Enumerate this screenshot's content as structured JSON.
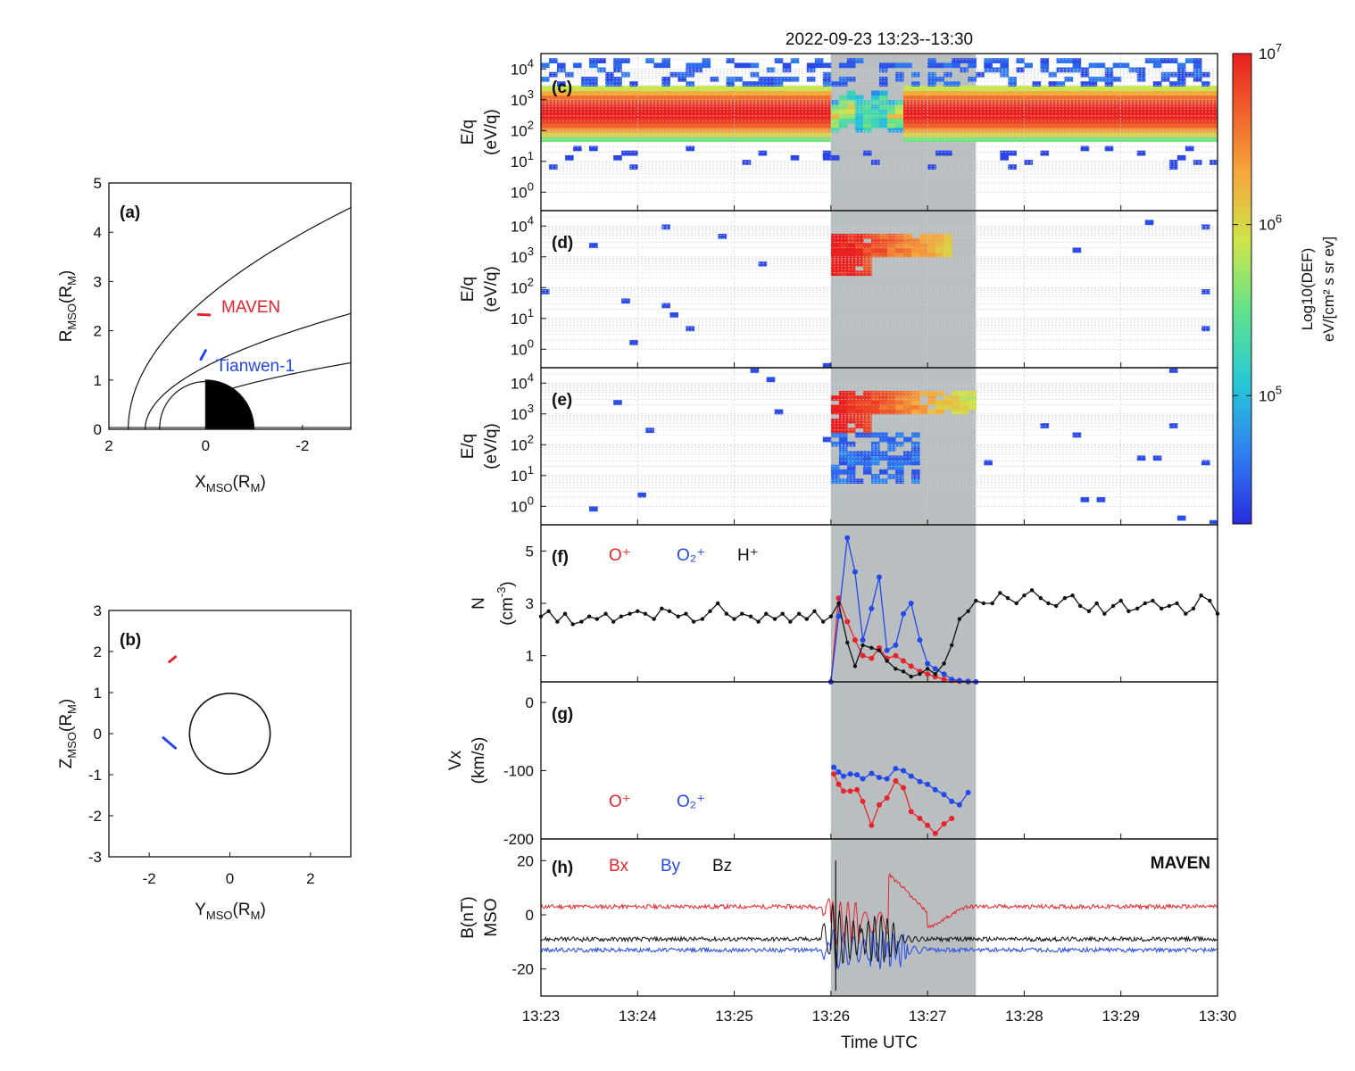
{
  "colors": {
    "red": "#e8232b",
    "blue": "#2347e8",
    "black": "#111111",
    "shade": "#b9bfc1",
    "planet": "#000000"
  },
  "colorbar": {
    "label": "Log10(DEF)",
    "unit": "eV/[cm² s sr ev]",
    "ticks": [
      {
        "base": "10",
        "exp": "7"
      },
      {
        "base": "10",
        "exp": "6"
      },
      {
        "base": "10",
        "exp": "5"
      }
    ]
  },
  "chart_data": [
    {
      "type": "line",
      "panel": "(a)",
      "xlabel": {
        "base": "X",
        "sub": "MSO",
        "rest": "(R",
        "rest_sub": "M",
        "close": ")"
      },
      "ylabel": {
        "base": "R",
        "sub": "MSO",
        "rest": "(R",
        "rest_sub": "M",
        "close": ")"
      },
      "xlim": [
        2,
        -3
      ],
      "ylim": [
        0,
        5
      ],
      "xticks": [
        "2",
        "0",
        "-2"
      ],
      "yticks": [
        "0",
        "1",
        "2",
        "3",
        "4",
        "5"
      ],
      "boundaries": [
        {
          "kind": "bow shock",
          "x0": 1.6,
          "x_end": -3,
          "y_end": 4.5
        },
        {
          "kind": "induced magnetosphere boundary",
          "x0": 1.25,
          "x_end": -3,
          "y_end": 2.35
        }
      ],
      "tracks": [
        {
          "name": "MAVEN",
          "color": "#e8232b",
          "points": [
            [
              0.15,
              2.33
            ],
            [
              -0.08,
              2.32
            ]
          ]
        },
        {
          "name": "Tianwen-1",
          "color": "#2347e8",
          "points": [
            [
              0.1,
              1.42
            ],
            [
              0.0,
              1.6
            ]
          ]
        }
      ]
    },
    {
      "type": "line",
      "panel": "(b)",
      "xlabel": {
        "base": "Y",
        "sub": "MSO",
        "rest": "(R",
        "rest_sub": "M",
        "close": ")"
      },
      "ylabel": {
        "base": "Z",
        "sub": "MSO",
        "rest": "(R",
        "rest_sub": "M",
        "close": ")"
      },
      "xlim": [
        -3,
        3
      ],
      "ylim": [
        -3,
        3
      ],
      "xticks": [
        "-2",
        "0",
        "2"
      ],
      "yticks": [
        "-3",
        "-2",
        "-1",
        "0",
        "1",
        "2",
        "3"
      ],
      "tracks": [
        {
          "color": "#e8232b",
          "points": [
            [
              -1.5,
              1.75
            ],
            [
              -1.35,
              1.87
            ]
          ]
        },
        {
          "color": "#2347e8",
          "points": [
            [
              -1.65,
              -0.1
            ],
            [
              -1.35,
              -0.35
            ]
          ]
        }
      ]
    },
    {
      "type": "heatmap",
      "panel": "(c)",
      "title": "2022-09-23 13:23--13:30",
      "ylabel": [
        "E/q",
        "(eV/q)"
      ],
      "yticks": [
        {
          "base": "10",
          "exp": "0"
        },
        {
          "base": "10",
          "exp": "1"
        },
        {
          "base": "10",
          "exp": "2"
        },
        {
          "base": "10",
          "exp": "3"
        },
        {
          "base": "10",
          "exp": "4"
        }
      ],
      "ylim_log10": [
        -0.6,
        4.5
      ],
      "band_log10": [
        1.6,
        3.6
      ],
      "peak_log10": 2.6
    },
    {
      "type": "heatmap",
      "panel": "(d)",
      "ylabel": [
        "E/q",
        "(eV/q)"
      ],
      "ylim_log10": [
        -0.6,
        4.5
      ],
      "feature": "high-energy ions 13:26-13:27 near 10^3-10^4 eV/q"
    },
    {
      "type": "heatmap",
      "panel": "(e)",
      "ylabel": [
        "E/q",
        "(eV/q)"
      ],
      "ylim_log10": [
        -0.6,
        4.5
      ],
      "feature": "high-energy ions 13:26-13:27.5 near 10^3-10^4 eV/q"
    },
    {
      "type": "line",
      "panel": "(f)",
      "ylabel": [
        "N",
        "(cm",
        "-3",
        ")"
      ],
      "ylim": [
        0,
        6
      ],
      "yticks": [
        "1",
        "3",
        "5"
      ],
      "series": [
        {
          "name": "O⁺",
          "color": "#e8232b",
          "x": [
            26.0,
            26.08,
            26.17,
            26.25,
            26.33,
            26.42,
            26.5,
            26.58,
            26.67,
            26.75,
            26.83,
            26.92,
            27.0,
            27.08,
            27.17,
            27.25,
            27.33,
            27.42,
            27.5
          ],
          "y": [
            0.0,
            3.2,
            2.3,
            1.6,
            1.0,
            0.9,
            1.3,
            0.9,
            1.0,
            0.8,
            0.6,
            0.4,
            0.3,
            0.2,
            0.1,
            0.05,
            0.02,
            0.0,
            0.0
          ]
        },
        {
          "name": "O₂⁺",
          "color": "#2347e8",
          "x": [
            26.0,
            26.08,
            26.17,
            26.25,
            26.33,
            26.42,
            26.5,
            26.58,
            26.67,
            26.75,
            26.83,
            26.92,
            27.0,
            27.08,
            27.17,
            27.25,
            27.33,
            27.42,
            27.5
          ],
          "y": [
            0.0,
            2.5,
            5.5,
            4.2,
            1.6,
            2.8,
            4.0,
            1.2,
            1.4,
            2.6,
            3.0,
            1.6,
            0.7,
            0.5,
            0.3,
            0.1,
            0.05,
            0.02,
            0.0
          ]
        },
        {
          "name": "H⁺",
          "color": "#111111",
          "x": [
            23.0,
            23.08,
            23.17,
            23.25,
            23.33,
            23.42,
            23.5,
            23.58,
            23.67,
            23.75,
            23.83,
            23.92,
            24.0,
            24.08,
            24.17,
            24.25,
            24.33,
            24.42,
            24.5,
            24.58,
            24.67,
            24.75,
            24.83,
            24.92,
            25.0,
            25.08,
            25.17,
            25.25,
            25.33,
            25.42,
            25.5,
            25.58,
            25.67,
            25.75,
            25.83,
            25.92,
            26.0,
            26.08,
            26.17,
            26.25,
            26.33,
            26.42,
            26.5,
            26.58,
            26.67,
            26.75,
            26.83,
            26.92,
            27.0,
            27.08,
            27.17,
            27.25,
            27.33,
            27.42,
            27.5,
            27.58,
            27.67,
            27.75,
            27.83,
            27.92,
            28.0,
            28.08,
            28.17,
            28.25,
            28.33,
            28.42,
            28.5,
            28.58,
            28.67,
            28.75,
            28.83,
            28.92,
            29.0,
            29.08,
            29.17,
            29.25,
            29.33,
            29.42,
            29.5,
            29.58,
            29.67,
            29.75,
            29.83,
            29.92,
            30.0
          ],
          "y": [
            2.5,
            2.7,
            2.3,
            2.6,
            2.2,
            2.3,
            2.5,
            2.4,
            2.6,
            2.3,
            2.5,
            2.6,
            2.7,
            2.6,
            2.4,
            2.8,
            2.7,
            2.5,
            2.6,
            2.3,
            2.4,
            2.7,
            3.0,
            2.6,
            2.4,
            2.6,
            2.5,
            2.3,
            2.6,
            2.4,
            2.6,
            2.3,
            2.6,
            2.4,
            2.7,
            2.3,
            2.5,
            3.0,
            1.5,
            0.6,
            1.4,
            1.3,
            1.2,
            0.8,
            0.5,
            0.4,
            0.2,
            0.3,
            0.5,
            0.3,
            0.7,
            1.4,
            2.4,
            2.7,
            3.1,
            3.0,
            3.0,
            3.4,
            3.2,
            3.0,
            3.3,
            3.5,
            3.2,
            3.0,
            2.9,
            3.2,
            3.3,
            2.9,
            2.7,
            3.0,
            2.6,
            2.9,
            3.1,
            2.7,
            2.8,
            3.0,
            3.1,
            2.8,
            2.9,
            3.0,
            2.6,
            2.8,
            3.3,
            3.1,
            2.6
          ]
        }
      ]
    },
    {
      "type": "line",
      "panel": "(g)",
      "ylabel": [
        "Vx",
        "(km/s)"
      ],
      "ylim": [
        -200,
        30
      ],
      "yticks": [
        "0",
        "-100",
        "-200"
      ],
      "series": [
        {
          "name": "O⁺",
          "color": "#e8232b",
          "x": [
            26.03,
            26.08,
            26.13,
            26.2,
            26.27,
            26.33,
            26.42,
            26.5,
            26.58,
            26.67,
            26.75,
            26.83,
            26.92,
            27.0,
            27.08,
            27.17,
            27.25
          ],
          "y": [
            -105,
            -120,
            -130,
            -130,
            -128,
            -145,
            -180,
            -150,
            -140,
            -115,
            -125,
            -160,
            -170,
            -180,
            -192,
            -178,
            -170
          ]
        },
        {
          "name": "O₂⁺",
          "color": "#2347e8",
          "x": [
            26.03,
            26.08,
            26.13,
            26.2,
            26.27,
            26.33,
            26.42,
            26.5,
            26.58,
            26.67,
            26.75,
            26.83,
            26.92,
            27.0,
            27.08,
            27.17,
            27.25,
            27.33,
            27.42
          ],
          "y": [
            -95,
            -102,
            -108,
            -105,
            -106,
            -112,
            -104,
            -110,
            -112,
            -97,
            -100,
            -108,
            -116,
            -120,
            -128,
            -135,
            -145,
            -150,
            -132
          ]
        }
      ]
    },
    {
      "type": "line",
      "panel": "(h)",
      "label": "MAVEN",
      "ylabel": [
        "B(nT)",
        "MSO"
      ],
      "ylim": [
        -30,
        28
      ],
      "yticks": [
        "20",
        "0",
        "-20"
      ],
      "series": [
        {
          "name": "Bx",
          "color": "#e8232b",
          "baseline": 3
        },
        {
          "name": "By",
          "color": "#2347e8",
          "baseline": -13
        },
        {
          "name": "Bz",
          "color": "#111111",
          "baseline": -9
        }
      ],
      "xticks": [
        "13:23",
        "13:24",
        "13:25",
        "13:26",
        "13:27",
        "13:28",
        "13:29",
        "13:30"
      ],
      "xlabel": "Time UTC",
      "shaded_interval": [
        "13:26",
        "13:27.5"
      ]
    }
  ]
}
